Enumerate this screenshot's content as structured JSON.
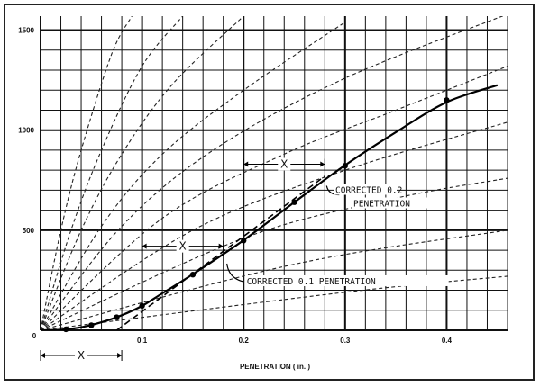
{
  "chart_data": {
    "type": "line",
    "title": "",
    "xlabel": "PENETRATION ( in. )",
    "ylabel": "",
    "xlim": [
      0,
      0.46
    ],
    "ylim": [
      0,
      1570
    ],
    "xticks": [
      {
        "value": 0.1,
        "label": "0.1"
      },
      {
        "value": 0.2,
        "label": "0.2"
      },
      {
        "value": 0.3,
        "label": "0.3"
      },
      {
        "value": 0.4,
        "label": "0.4"
      }
    ],
    "origin_label": "0",
    "yticks": [
      {
        "value": 500,
        "label": "500"
      },
      {
        "value": 1000,
        "label": "1000"
      },
      {
        "value": 1500,
        "label": "1500"
      }
    ],
    "grid": true,
    "series": [
      {
        "kind": "curve",
        "style": "solid",
        "points": [
          [
            0,
            0
          ],
          [
            0.02,
            3
          ],
          [
            0.04,
            15
          ],
          [
            0.06,
            40
          ],
          [
            0.08,
            75
          ],
          [
            0.1,
            122
          ],
          [
            0.12,
            185
          ],
          [
            0.15,
            280
          ],
          [
            0.2,
            450
          ],
          [
            0.25,
            640
          ],
          [
            0.3,
            825
          ],
          [
            0.35,
            990
          ],
          [
            0.4,
            1140
          ],
          [
            0.45,
            1225
          ]
        ],
        "markers": [
          [
            0.025,
            5
          ],
          [
            0.05,
            25
          ],
          [
            0.075,
            65
          ],
          [
            0.1,
            122
          ],
          [
            0.15,
            278
          ],
          [
            0.2,
            448
          ],
          [
            0.25,
            640
          ],
          [
            0.3,
            822
          ],
          [
            0.4,
            1150
          ]
        ]
      },
      {
        "kind": "tangent",
        "style": "dashed",
        "points": [
          [
            0.075,
            0
          ],
          [
            0.28,
            770
          ]
        ]
      }
    ],
    "reference_curves": [
      {
        "style": "dashed",
        "points": [
          [
            0,
            0
          ],
          [
            0.02,
            500
          ],
          [
            0.04,
            900
          ],
          [
            0.07,
            1380
          ],
          [
            0.09,
            1570
          ]
        ]
      },
      {
        "style": "dashed",
        "points": [
          [
            0,
            0
          ],
          [
            0.03,
            500
          ],
          [
            0.06,
            900
          ],
          [
            0.1,
            1320
          ],
          [
            0.14,
            1570
          ]
        ]
      },
      {
        "style": "dashed",
        "points": [
          [
            0,
            0
          ],
          [
            0.04,
            500
          ],
          [
            0.08,
            880
          ],
          [
            0.13,
            1230
          ],
          [
            0.2,
            1570
          ]
        ]
      },
      {
        "style": "dashed",
        "points": [
          [
            0,
            0
          ],
          [
            0.06,
            520
          ],
          [
            0.12,
            880
          ],
          [
            0.2,
            1200
          ],
          [
            0.3,
            1540
          ]
        ]
      },
      {
        "style": "dashed",
        "points": [
          [
            0,
            0
          ],
          [
            0.08,
            520
          ],
          [
            0.17,
            900
          ],
          [
            0.3,
            1260
          ],
          [
            0.46,
            1580
          ]
        ]
      },
      {
        "style": "dashed",
        "points": [
          [
            0,
            0
          ],
          [
            0.12,
            560
          ],
          [
            0.24,
            880
          ],
          [
            0.35,
            1100
          ],
          [
            0.46,
            1320
          ]
        ]
      },
      {
        "style": "dashed",
        "points": [
          [
            0,
            0
          ],
          [
            0.15,
            500
          ],
          [
            0.3,
            800
          ],
          [
            0.46,
            1040
          ]
        ]
      },
      {
        "style": "dashed",
        "points": [
          [
            0,
            0
          ],
          [
            0.2,
            460
          ],
          [
            0.35,
            660
          ],
          [
            0.46,
            760
          ]
        ]
      },
      {
        "style": "dashed",
        "points": [
          [
            0,
            0
          ],
          [
            0.25,
            330
          ],
          [
            0.46,
            500
          ]
        ]
      },
      {
        "style": "dashed",
        "points": [
          [
            0,
            0
          ],
          [
            0.3,
            190
          ],
          [
            0.46,
            270
          ]
        ]
      }
    ],
    "annotations": [
      {
        "text": "X",
        "kind": "interval-top",
        "from": [
          0.2,
          830
        ],
        "to": [
          0.28,
          830
        ]
      },
      {
        "text": "X",
        "kind": "interval-mid",
        "from": [
          0.1,
          420
        ],
        "to": [
          0.18,
          420
        ]
      },
      {
        "text": "X",
        "kind": "interval-bottom",
        "from": [
          0.0,
          -120
        ],
        "to": [
          0.08,
          -120
        ]
      },
      {
        "text": "CORRECTED 0.2",
        "line2": "PENETRATION",
        "kind": "callout",
        "at": [
          0.28,
          740
        ]
      },
      {
        "text": "CORRECTED 0.1 PENETRATION",
        "kind": "callout",
        "at": [
          0.18,
          360
        ]
      }
    ]
  }
}
